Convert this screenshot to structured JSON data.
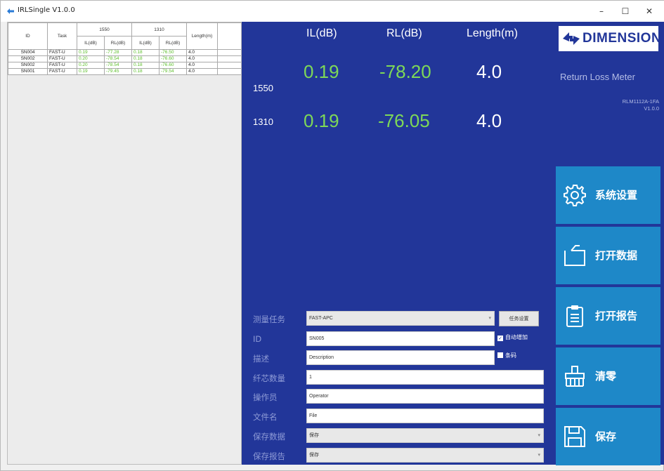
{
  "window": {
    "title": "IRLSingle V1.0.0"
  },
  "table": {
    "headers": {
      "id": "ID",
      "task": "Task",
      "group_1550": "1550",
      "group_1310": "1310",
      "il": "IL(dB)",
      "rl": "RL(dB)",
      "length": "Length(m)"
    },
    "rows": [
      {
        "id": "SN004",
        "task": "FAST-U",
        "il1550": "0.19",
        "rl1550": "-77.28",
        "il1310": "0.18",
        "rl1310": "-76.50",
        "len": "4.0"
      },
      {
        "id": "SN002",
        "task": "FAST-U",
        "il1550": "0.20",
        "rl1550": "-78.54",
        "il1310": "0.18",
        "rl1310": "-76.60",
        "len": "4.0"
      },
      {
        "id": "SN002",
        "task": "FAST-U",
        "il1550": "0.20",
        "rl1550": "-78.54",
        "il1310": "0.18",
        "rl1310": "-76.60",
        "len": "4.0"
      },
      {
        "id": "SN001",
        "task": "FAST-U",
        "il1550": "0.19",
        "rl1550": "-79.45",
        "il1310": "0.18",
        "rl1310": "-79.54",
        "len": "4.0"
      }
    ]
  },
  "readings": {
    "headers": {
      "il": "IL(dB)",
      "rl": "RL(dB)",
      "length": "Length(m)"
    },
    "rows": [
      {
        "wavelength": "1550",
        "il": "0.19",
        "rl": "-78.20",
        "length": "4.0"
      },
      {
        "wavelength": "1310",
        "il": "0.19",
        "rl": "-76.05",
        "length": "4.0"
      }
    ]
  },
  "form": {
    "task_label": "测量任务",
    "task_value": "FAST-APC",
    "task_settings_button": "任务设置",
    "id_label": "ID",
    "id_value": "SN005",
    "auto_increment_label": "自动增加",
    "auto_increment_checked": true,
    "desc_label": "描述",
    "desc_value": "Description",
    "barcode_label": "条码",
    "barcode_checked": false,
    "fiber_count_label": "纤芯数量",
    "fiber_count_value": "1",
    "operator_label": "操作员",
    "operator_value": "Operator",
    "filename_label": "文件名",
    "filename_value": "File",
    "save_data_label": "保存数据",
    "save_data_value": "保存",
    "save_report_label": "保存报告",
    "save_report_value": "保存"
  },
  "sidebar": {
    "logo_text": "DIMENSION",
    "product_name": "Return Loss Meter",
    "model": "RLM1112A-1FA",
    "version": "V1.0.0",
    "buttons": {
      "settings": "系统设置",
      "open_data": "打开数据",
      "open_report": "打开报告",
      "clear": "清零",
      "save": "保存"
    }
  },
  "colors": {
    "panel_blue": "#223699",
    "button_blue": "#1e88c8",
    "value_green": "#7ed957"
  }
}
